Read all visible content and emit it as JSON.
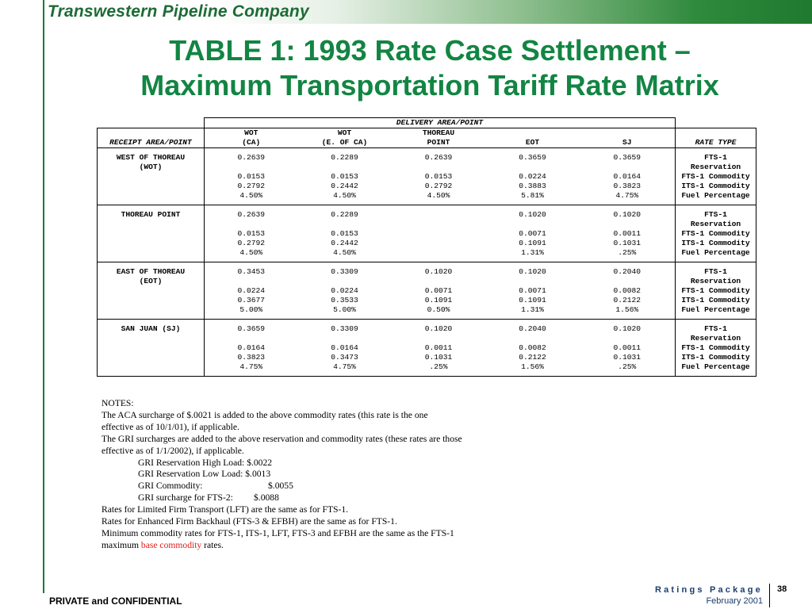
{
  "header": {
    "company": "Transwestern Pipeline Company",
    "accent_color": "#1f7a2f"
  },
  "title": {
    "line1": "TABLE 1:  1993 Rate Case Settlement –",
    "line2": "Maximum Transportation Tariff Rate Matrix",
    "color": "#128543"
  },
  "table": {
    "delivery_header": "DELIVERY AREA/POINT",
    "receipt_header": "RECEIPT AREA/POINT",
    "rate_type_header": "RATE TYPE",
    "columns": [
      {
        "line1": "WOT",
        "line2": "(CA)"
      },
      {
        "line1": "WOT",
        "line2": "(E. OF CA)"
      },
      {
        "line1": "THOREAU",
        "line2": "POINT"
      },
      {
        "line1": "",
        "line2": "EOT"
      },
      {
        "line1": "",
        "line2": "SJ"
      }
    ],
    "groups": [
      {
        "receipt": [
          "WEST OF THOREAU",
          "(WOT)"
        ],
        "rows": [
          {
            "values": [
              "0.2639",
              "0.2289",
              "0.2639",
              "0.3659",
              "0.3659"
            ],
            "type": [
              "FTS-1",
              "Reservation"
            ]
          },
          {
            "values": [
              "0.0153",
              "0.0153",
              "0.0153",
              "0.0224",
              "0.0164"
            ],
            "type": [
              "FTS-1 Commodity"
            ]
          },
          {
            "values": [
              "0.2792",
              "0.2442",
              "0.2792",
              "0.3883",
              "0.3823"
            ],
            "type": [
              "ITS-1 Commodity"
            ]
          },
          {
            "values": [
              "4.50%",
              "4.50%",
              "4.50%",
              "5.81%",
              "4.75%"
            ],
            "type": [
              "Fuel Percentage"
            ]
          }
        ]
      },
      {
        "receipt": [
          "THOREAU POINT"
        ],
        "rows": [
          {
            "values": [
              "0.2639",
              "0.2289",
              "",
              "0.1020",
              "0.1020"
            ],
            "type": [
              "FTS-1",
              "Reservation"
            ]
          },
          {
            "values": [
              "0.0153",
              "0.0153",
              "",
              "0.0071",
              "0.0011"
            ],
            "type": [
              "FTS-1 Commodity"
            ]
          },
          {
            "values": [
              "0.2792",
              "0.2442",
              "",
              "0.1091",
              "0.1031"
            ],
            "type": [
              "ITS-1 Commodity"
            ]
          },
          {
            "values": [
              "4.50%",
              "4.50%",
              "",
              "1.31%",
              ".25%"
            ],
            "type": [
              "Fuel Percentage"
            ]
          }
        ]
      },
      {
        "receipt": [
          "EAST OF THOREAU",
          "(EOT)"
        ],
        "rows": [
          {
            "values": [
              "0.3453",
              "0.3309",
              "0.1020",
              "0.1020",
              "0.2040"
            ],
            "type": [
              "FTS-1",
              "Reservation"
            ]
          },
          {
            "values": [
              "0.0224",
              "0.0224",
              "0.0071",
              "0.0071",
              "0.0082"
            ],
            "type": [
              "FTS-1 Commodity"
            ]
          },
          {
            "values": [
              "0.3677",
              "0.3533",
              "0.1091",
              "0.1091",
              "0.2122"
            ],
            "type": [
              "ITS-1 Commodity"
            ]
          },
          {
            "values": [
              "5.00%",
              "5.00%",
              "0.50%",
              "1.31%",
              "1.56%"
            ],
            "type": [
              "Fuel Percentage"
            ]
          }
        ]
      },
      {
        "receipt": [
          "SAN JUAN (SJ)"
        ],
        "rows": [
          {
            "values": [
              "0.3659",
              "0.3309",
              "0.1020",
              "0.2040",
              "0.1020"
            ],
            "type": [
              "FTS-1",
              "Reservation"
            ]
          },
          {
            "values": [
              "0.0164",
              "0.0164",
              "0.0011",
              "0.0082",
              "0.0011"
            ],
            "type": [
              "FTS-1 Commodity"
            ]
          },
          {
            "values": [
              "0.3823",
              "0.3473",
              "0.1031",
              "0.2122",
              "0.1031"
            ],
            "type": [
              "ITS-1 Commodity"
            ]
          },
          {
            "values": [
              "4.75%",
              "4.75%",
              ".25%",
              "1.56%",
              ".25%"
            ],
            "type": [
              "Fuel Percentage"
            ]
          }
        ]
      }
    ]
  },
  "notes": {
    "heading": "NOTES:",
    "aca_1": "The ACA surcharge of $.0021 is added to the above commodity rates (this rate is the one",
    "aca_2": "effective as of 10/1/01), if applicable.",
    "gri_1": "The GRI surcharges are added to the above reservation and commodity rates (these rates are those",
    "gri_2": "effective as of 1/1/2002), if applicable.",
    "gri_items": [
      {
        "label": "GRI Reservation High Load:",
        "value": "$.0022"
      },
      {
        "label": "GRI Reservation Low  Load:",
        "value": "$.0013"
      },
      {
        "label": "GRI Commodity:",
        "value": "$.0055"
      },
      {
        "label": "GRI surcharge for FTS-2:",
        "value": "$.0088"
      }
    ],
    "lft": "Rates for Limited Firm Transport (LFT) are the same as for FTS-1.",
    "efbh": "Rates for Enhanced Firm Backhaul (FTS-3 & EFBH) are the same as for FTS-1.",
    "min_1": "Minimum commodity rates for FTS-1, ITS-1, LFT, FTS-3 and EFBH are the same as the FTS-1",
    "min_2_prefix": "maximum",
    "min_2_link": "base commodity",
    "min_2_suffix": "rates.",
    "link_color": "#e0201b"
  },
  "footer": {
    "confidential": "PRIVATE and CONFIDENTIAL",
    "package": "Ratings Package",
    "date": "February 2001",
    "page_number": "38"
  }
}
